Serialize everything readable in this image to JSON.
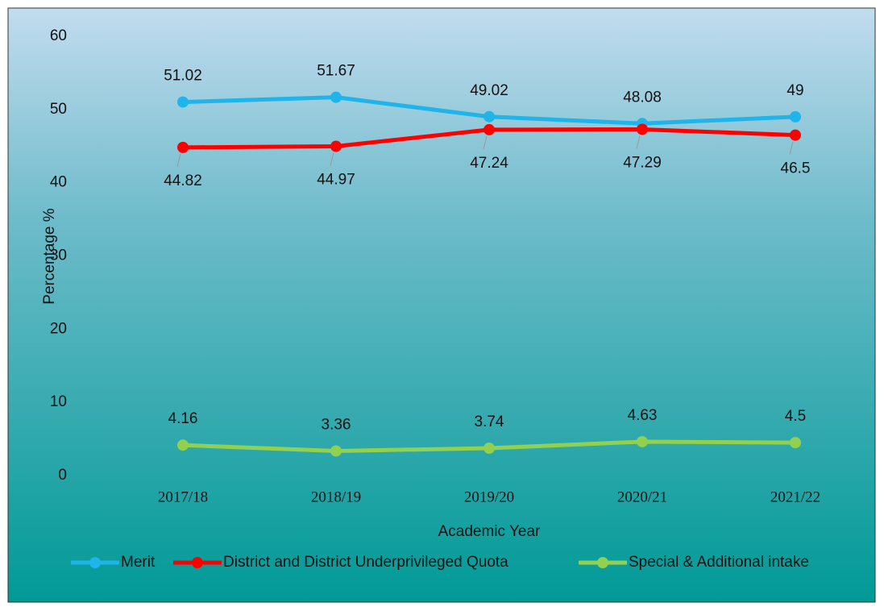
{
  "chart_data": {
    "type": "line",
    "x_label": "Academic Year",
    "y_label": "Percentage %",
    "categories": [
      "2017/18",
      "2018/19",
      "2019/20",
      "2020/21",
      "2021/22"
    ],
    "series": [
      {
        "name": "Merit",
        "color": "#1fb4ea",
        "values": [
          51.02,
          51.67,
          49.02,
          48.08,
          49
        ]
      },
      {
        "name": "District and District Underprivileged Quota",
        "color": "#ff0000",
        "values": [
          44.82,
          44.97,
          47.24,
          47.29,
          46.5
        ]
      },
      {
        "name": "Special & Additional intake",
        "color": "#92d050",
        "values": [
          4.16,
          3.36,
          3.74,
          4.63,
          4.5
        ]
      }
    ],
    "ylim": [
      0,
      60
    ],
    "yticks": [
      0,
      10,
      20,
      30,
      40,
      50,
      60
    ],
    "grid": false,
    "legend": "bottom"
  }
}
